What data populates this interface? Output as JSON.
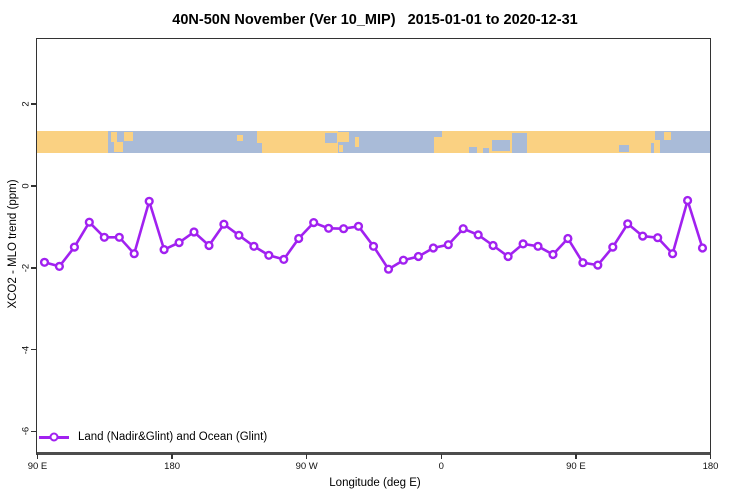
{
  "title": "40N-50N November (Ver 10_MIP)   2015-01-01 to 2020-12-31",
  "legend": {
    "label": "Land (Nadir&Glint) and Ocean (Glint)"
  },
  "axes": {
    "x_label": "Longitude (deg E)",
    "y_label": "XCO2 - MLO trend (ppm)"
  },
  "colors": {
    "line": "#A121F0",
    "marker_fill": "#ffffff",
    "land": "#FAD182",
    "ocean": "#A9BBD8",
    "axis_bottom": "#4d4d4d",
    "box_border": "#333333",
    "text": "#000000"
  },
  "chart_data": {
    "type": "line",
    "title": "40N-50N November (Ver 10_MIP)   2015-01-01 to 2020-12-31",
    "xlabel": "Longitude (deg E)",
    "ylabel": "XCO2 - MLO trend (ppm)",
    "xlim": [
      90,
      540
    ],
    "ylim": [
      -6.48,
      3.62
    ],
    "grid": false,
    "legend_position": "bottom-left-inside",
    "x_ticks": [
      {
        "pos": 90,
        "label": "90 E"
      },
      {
        "pos": 180,
        "label": "180"
      },
      {
        "pos": 270,
        "label": "90 W"
      },
      {
        "pos": 360,
        "label": "0"
      },
      {
        "pos": 450,
        "label": "90 E"
      },
      {
        "pos": 540,
        "label": "180"
      }
    ],
    "y_ticks": [
      {
        "pos": 2,
        "label": "2"
      },
      {
        "pos": 0,
        "label": "0"
      },
      {
        "pos": -2,
        "label": "-2"
      },
      {
        "pos": -4,
        "label": "-4"
      },
      {
        "pos": -6,
        "label": "-6"
      }
    ],
    "series": [
      {
        "name": "Land (Nadir&Glint) and Ocean (Glint)",
        "marker": "open-circle",
        "x_deg_east": [
          95,
          105,
          115,
          125,
          135,
          145,
          155,
          165,
          175,
          185,
          195,
          205,
          215,
          225,
          235,
          245,
          255,
          265,
          275,
          285,
          295,
          305,
          315,
          325,
          335,
          345,
          355,
          365,
          375,
          385,
          395,
          405,
          415,
          425,
          435,
          445,
          455,
          465,
          475,
          485,
          495,
          505,
          515,
          525,
          535
        ],
        "values": [
          -1.84,
          -1.94,
          -1.47,
          -0.86,
          -1.23,
          -1.23,
          -1.63,
          -0.35,
          -1.53,
          -1.36,
          -1.1,
          -1.43,
          -0.91,
          -1.18,
          -1.45,
          -1.67,
          -1.77,
          -1.26,
          -0.87,
          -1.01,
          -1.02,
          -0.96,
          -1.45,
          -2.01,
          -1.79,
          -1.7,
          -1.49,
          -1.41,
          -1.02,
          -1.17,
          -1.43,
          -1.7,
          -1.39,
          -1.45,
          -1.65,
          -1.26,
          -1.85,
          -1.91,
          -1.47,
          -0.9,
          -1.2,
          -1.24,
          -1.63,
          -0.33,
          -1.49
        ]
      }
    ],
    "map_strip": {
      "description": "world coastline band for 40N-50N latitude drawn across the plot",
      "y_top_value": 1.38,
      "y_bottom_value": 0.82,
      "land_segments": [
        [
          90,
          137.4,
          0,
          1
        ],
        [
          139.8,
          143.8,
          0.05,
          0.5
        ],
        [
          141.5,
          147.5,
          0.5,
          0.95
        ],
        [
          148.5,
          154.5,
          0.05,
          0.45
        ],
        [
          224,
          227.5,
          0.2,
          0.45
        ],
        [
          237,
          291,
          0,
          1
        ],
        [
          290.5,
          298.5,
          0.05,
          0.5
        ],
        [
          292,
          294.5,
          0.65,
          0.95
        ],
        [
          302.5,
          305.5,
          0.3,
          0.7
        ],
        [
          355.5,
          500.5,
          0,
          1
        ],
        [
          500.5,
          503.5,
          0,
          0.55
        ],
        [
          502.5,
          506.5,
          0.4,
          1
        ],
        [
          509.5,
          514,
          0.05,
          0.4
        ]
      ],
      "water_patches": [
        [
          237,
          240.5,
          0.55,
          1
        ],
        [
          282.5,
          290.5,
          0.1,
          0.55
        ],
        [
          355.5,
          360.5,
          0,
          0.3
        ],
        [
          379,
          384.5,
          0.7,
          1
        ],
        [
          388,
          392,
          0.75,
          1
        ],
        [
          394.5,
          406,
          0.4,
          0.9
        ],
        [
          407.5,
          417.5,
          0.1,
          1
        ],
        [
          479,
          486,
          0.65,
          0.95
        ]
      ]
    }
  }
}
